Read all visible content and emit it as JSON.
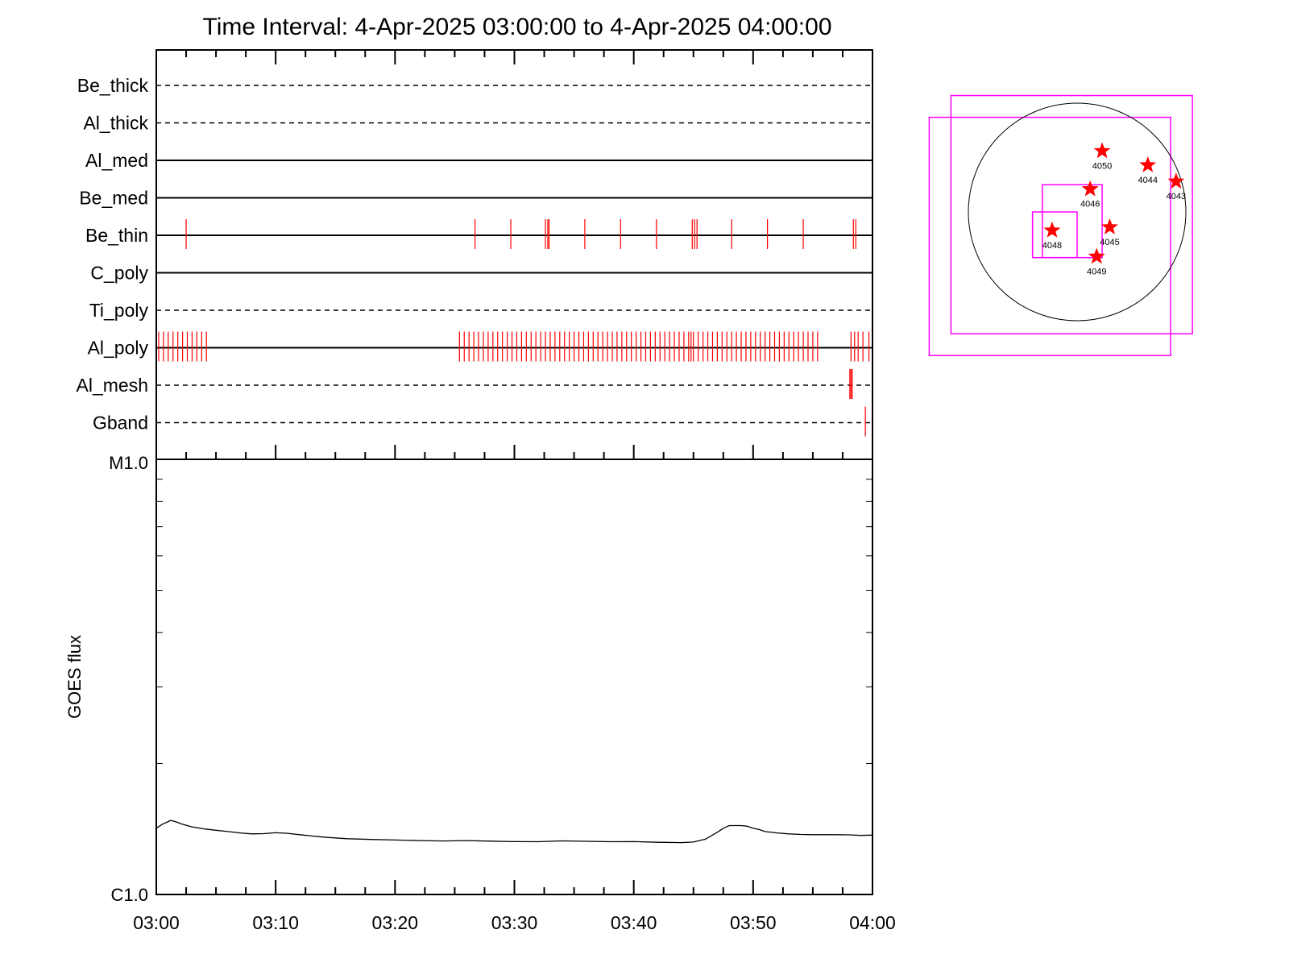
{
  "title": "Time Interval:  4-Apr-2025 03:00:00 to  4-Apr-2025 04:00:00",
  "colors": {
    "marks": "#ff0000",
    "boxes": "#ff00ff",
    "axes": "#000000"
  },
  "chart_data": [
    {
      "type": "event-timeline",
      "x_unit": "minutes after 03:00",
      "xlim": [
        0,
        60
      ],
      "channels": [
        {
          "name": "Be_thick",
          "line": "dashed",
          "events": []
        },
        {
          "name": "Al_thick",
          "line": "dashed",
          "events": []
        },
        {
          "name": "Al_med",
          "line": "solid",
          "events": []
        },
        {
          "name": "Be_med",
          "line": "solid",
          "events": []
        },
        {
          "name": "Be_thin",
          "line": "solid",
          "events": [
            2.5,
            26.7,
            29.7,
            32.6,
            32.8,
            32.9,
            35.9,
            38.9,
            41.9,
            44.9,
            45.1,
            45.3,
            48.2,
            51.2,
            54.2,
            58.4,
            58.6
          ]
        },
        {
          "name": "C_poly",
          "line": "solid",
          "events": []
        },
        {
          "name": "Ti_poly",
          "line": "dashed",
          "events": []
        },
        {
          "name": "Al_poly",
          "line": "solid",
          "events": [
            0.2,
            0.6,
            1.0,
            1.4,
            1.8,
            2.2,
            2.6,
            3.0,
            3.4,
            3.8,
            4.2,
            25.4,
            25.8,
            26.2,
            26.6,
            27.0,
            27.4,
            27.8,
            28.2,
            28.6,
            29.0,
            29.4,
            29.8,
            30.2,
            30.6,
            31.0,
            31.4,
            31.8,
            32.2,
            32.6,
            33.0,
            33.4,
            33.8,
            34.2,
            34.6,
            35.0,
            35.4,
            35.8,
            36.2,
            36.6,
            37.0,
            37.4,
            37.8,
            38.2,
            38.6,
            39.0,
            39.4,
            39.8,
            40.2,
            40.6,
            41.0,
            41.4,
            41.8,
            42.2,
            42.6,
            43.0,
            43.4,
            43.8,
            44.2,
            44.6,
            44.8,
            45.0,
            45.4,
            45.8,
            46.2,
            46.6,
            47.0,
            47.4,
            47.8,
            48.2,
            48.6,
            49.0,
            49.4,
            49.8,
            50.2,
            50.6,
            51.0,
            51.4,
            51.8,
            52.2,
            52.6,
            53.0,
            53.4,
            53.8,
            54.2,
            54.6,
            55.0,
            55.4,
            58.2,
            58.5,
            58.8,
            59.2,
            59.7
          ]
        },
        {
          "name": "Al_mesh",
          "line": "dashed",
          "events": [
            58.1,
            58.2,
            58.3
          ]
        },
        {
          "name": "Gband",
          "line": "dashed",
          "events": [
            59.4
          ]
        }
      ]
    },
    {
      "type": "line",
      "ylabel": "GOES flux",
      "y_scale": "log",
      "ylim_labels": [
        "C1.0",
        "M1.0"
      ],
      "ylim": [
        1e-06,
        1e-05
      ],
      "x_ticks": [
        "03:00",
        "03:10",
        "03:20",
        "03:30",
        "03:40",
        "03:50",
        "04:00"
      ],
      "xlim": [
        0,
        60
      ],
      "x": [
        0,
        0.5,
        1,
        1.2,
        1.6,
        2.2,
        3,
        4,
        5,
        6,
        7,
        8,
        9,
        10,
        11,
        12,
        14,
        16,
        18,
        20,
        22,
        24,
        26,
        28,
        30,
        32,
        34,
        36,
        38,
        40,
        42,
        44,
        45,
        46,
        47,
        47.5,
        48,
        49,
        49.5,
        50,
        50.5,
        51,
        52,
        53,
        54,
        55,
        56,
        57,
        58,
        59,
        60
      ],
      "y": [
        1.42e-06,
        1.45e-06,
        1.47e-06,
        1.48e-06,
        1.47e-06,
        1.45e-06,
        1.43e-06,
        1.415e-06,
        1.405e-06,
        1.395e-06,
        1.385e-06,
        1.378e-06,
        1.38e-06,
        1.386e-06,
        1.382e-06,
        1.372e-06,
        1.355e-06,
        1.343e-06,
        1.338e-06,
        1.334e-06,
        1.33e-06,
        1.327e-06,
        1.33e-06,
        1.326e-06,
        1.323e-06,
        1.322e-06,
        1.328e-06,
        1.325e-06,
        1.322e-06,
        1.323e-06,
        1.318e-06,
        1.316e-06,
        1.32e-06,
        1.34e-06,
        1.39e-06,
        1.42e-06,
        1.44e-06,
        1.44e-06,
        1.435e-06,
        1.42e-06,
        1.41e-06,
        1.395e-06,
        1.385e-06,
        1.378e-06,
        1.374e-06,
        1.372e-06,
        1.372e-06,
        1.372e-06,
        1.371e-06,
        1.367e-06,
        1.369e-06
      ]
    },
    {
      "type": "scatter",
      "description_unit": "solar disk coordinates in units of solar radius",
      "points": [
        {
          "label": "4050",
          "x": 0.23,
          "y": 0.56
        },
        {
          "label": "4044",
          "x": 0.65,
          "y": 0.43
        },
        {
          "label": "4043",
          "x": 0.91,
          "y": 0.28
        },
        {
          "label": "4046",
          "x": 0.12,
          "y": 0.21
        },
        {
          "label": "4045",
          "x": 0.3,
          "y": -0.14
        },
        {
          "label": "4048",
          "x": -0.23,
          "y": -0.17
        },
        {
          "label": "4049",
          "x": 0.18,
          "y": -0.41
        }
      ],
      "boxes": [
        {
          "x": [
            -1.36,
            0.86
          ],
          "y": [
            -1.32,
            0.87
          ]
        },
        {
          "x": [
            -1.16,
            1.06
          ],
          "y": [
            -1.12,
            1.07
          ]
        },
        {
          "x": [
            -0.32,
            0.23
          ],
          "y": [
            -0.42,
            0.25
          ]
        },
        {
          "x": [
            -0.41,
            0.0
          ],
          "y": [
            -0.42,
            0.0
          ]
        }
      ]
    }
  ]
}
